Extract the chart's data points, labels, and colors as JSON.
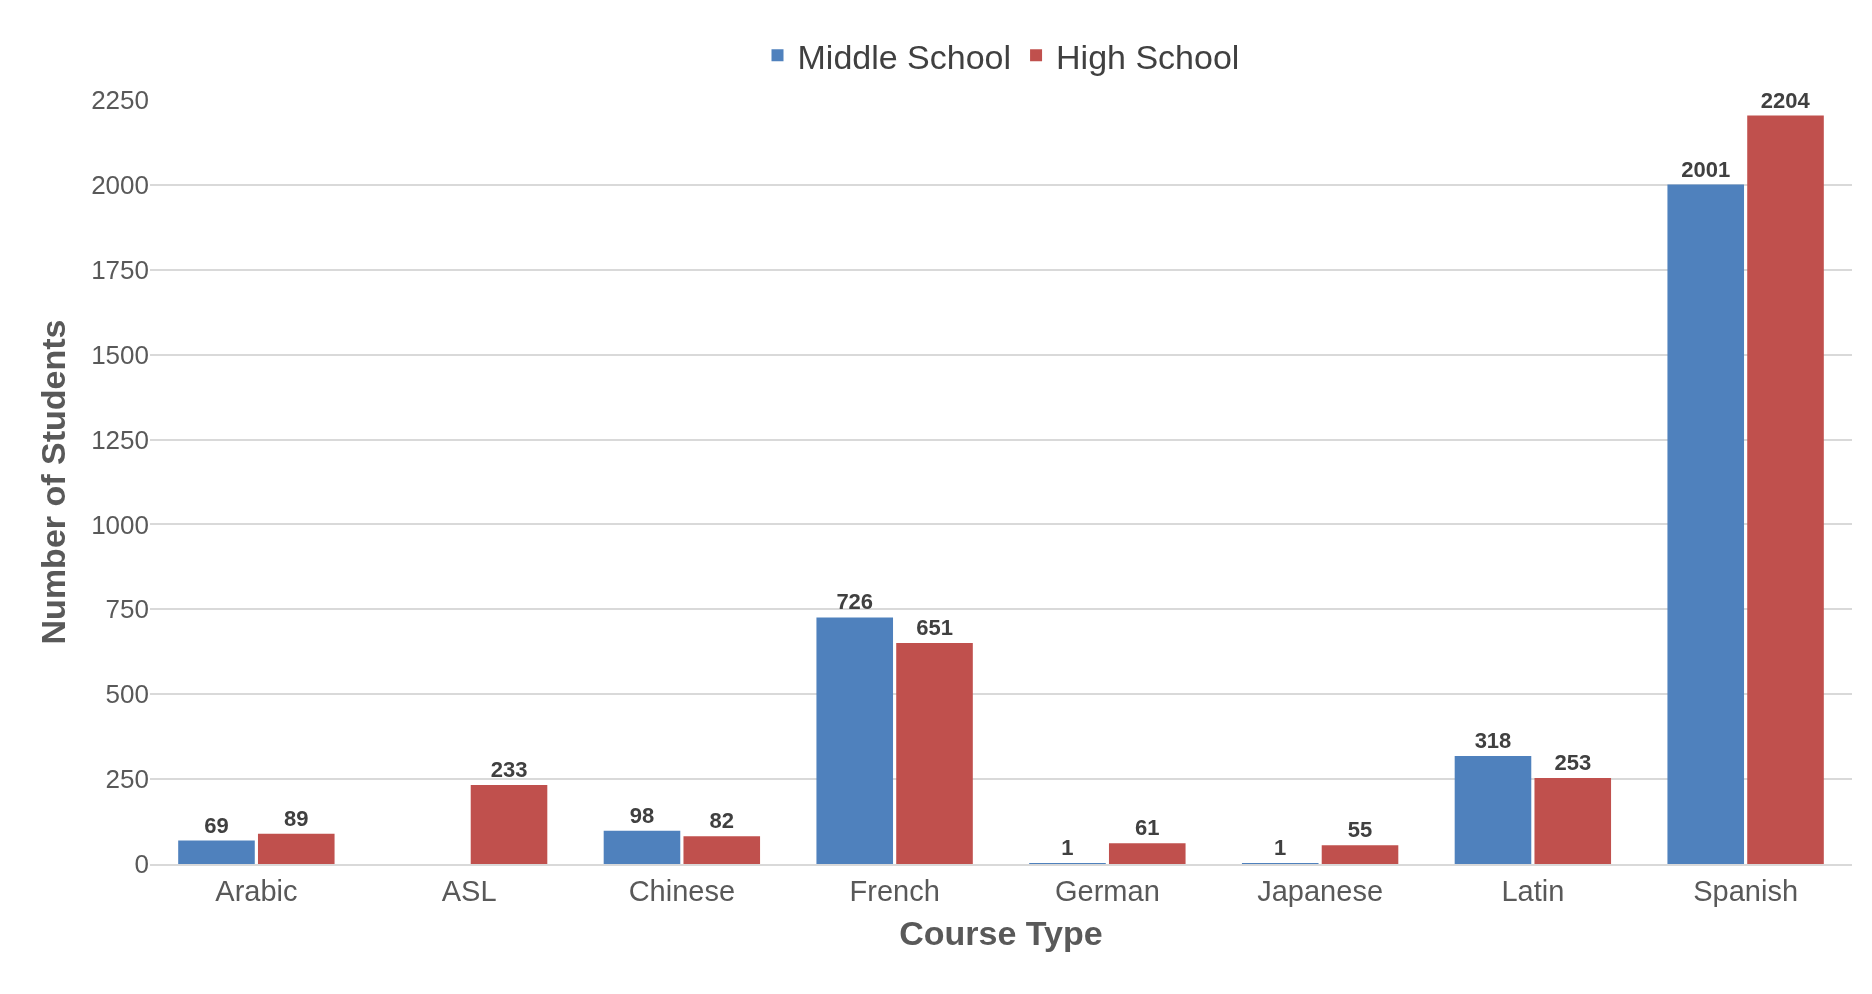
{
  "chart_data": {
    "type": "bar",
    "xlabel": "Course Type",
    "ylabel": "Number of Students",
    "categories": [
      "Arabic",
      "ASL",
      "Chinese",
      "French",
      "German",
      "Japanese",
      "Latin",
      "Spanish"
    ],
    "series": [
      {
        "name": "Middle School",
        "color": "#4f81bd",
        "values": [
          69,
          null,
          98,
          726,
          1,
          1,
          318,
          2001
        ]
      },
      {
        "name": "High School",
        "color": "#c0504d",
        "values": [
          89,
          233,
          82,
          651,
          61,
          55,
          253,
          2204
        ]
      }
    ],
    "ylim": [
      0,
      2250
    ],
    "yticks": [
      0,
      250,
      500,
      750,
      1000,
      1250,
      1500,
      1750,
      2000,
      2250
    ],
    "grid": "y",
    "legend": "top",
    "data_labels": true
  }
}
